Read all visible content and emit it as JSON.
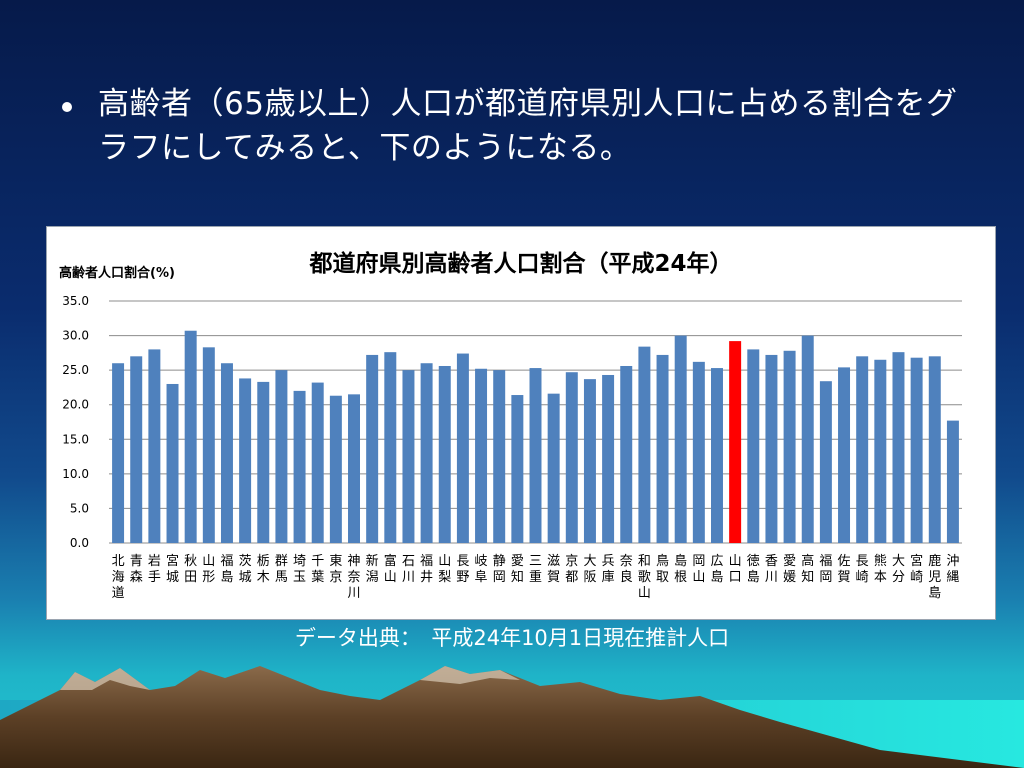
{
  "slide": {
    "bullet": "高齢者（65歳以上）人口が都道府県別人口に占める割合をグラフにしてみると、下のようになる。",
    "source": "データ出典：　平成24年10月1日現在推計人口"
  },
  "colors": {
    "bar": "#4f81bd",
    "highlight": "#ff0000"
  },
  "chart_data": {
    "type": "bar",
    "title": "都道府県別高齢者人口割合（平成24年）",
    "ylabel": "高齢者人口割合(%)",
    "ylim": [
      0,
      35
    ],
    "yticks": [
      "35.0",
      "30.0",
      "25.0",
      "20.0",
      "15.0",
      "10.0",
      "5.0",
      "0.0"
    ],
    "grid": true,
    "highlight_category": "山口",
    "categories": [
      "北海道",
      "青森",
      "岩手",
      "宮城",
      "秋田",
      "山形",
      "福島",
      "茨城",
      "栃木",
      "群馬",
      "埼玉",
      "千葉",
      "東京",
      "神奈川",
      "新潟",
      "富山",
      "石川",
      "福井",
      "山梨",
      "長野",
      "岐阜",
      "静岡",
      "愛知",
      "三重",
      "滋賀",
      "京都",
      "大阪",
      "兵庫",
      "奈良",
      "和歌山",
      "鳥取",
      "島根",
      "岡山",
      "広島",
      "山口",
      "徳島",
      "香川",
      "愛媛",
      "高知",
      "福岡",
      "佐賀",
      "長崎",
      "熊本",
      "大分",
      "宮崎",
      "鹿児島",
      "沖縄"
    ],
    "values": [
      26.0,
      27.0,
      28.0,
      23.0,
      30.7,
      28.3,
      26.0,
      23.8,
      23.3,
      25.0,
      22.0,
      23.2,
      21.3,
      21.5,
      27.2,
      27.6,
      25.0,
      26.0,
      25.6,
      27.4,
      25.2,
      25.0,
      21.4,
      25.3,
      21.6,
      24.7,
      23.7,
      24.3,
      25.6,
      28.4,
      27.2,
      30.0,
      26.2,
      25.3,
      29.2,
      28.0,
      27.2,
      27.8,
      30.0,
      23.4,
      25.4,
      27.0,
      26.5,
      27.6,
      26.8,
      27.0,
      17.7
    ]
  }
}
